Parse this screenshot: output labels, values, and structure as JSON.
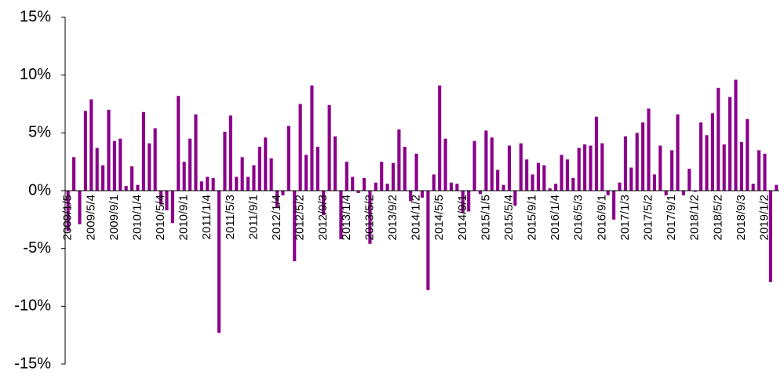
{
  "chart_data": {
    "type": "bar",
    "color": "#8b008b",
    "ylim": [
      -15,
      15
    ],
    "yticks": [
      {
        "value": -15,
        "label": "-15%"
      },
      {
        "value": -10,
        "label": "-10%"
      },
      {
        "value": -5,
        "label": "-5%"
      },
      {
        "value": 0,
        "label": "0%"
      },
      {
        "value": 5,
        "label": "5%"
      },
      {
        "value": 10,
        "label": "10%"
      },
      {
        "value": 15,
        "label": "15%"
      }
    ],
    "categories": [
      "2009/1/5",
      null,
      null,
      null,
      "2009/5/4",
      null,
      null,
      null,
      "2009/9/1",
      null,
      null,
      null,
      "2010/1/4",
      null,
      null,
      null,
      "2010/5/4",
      null,
      null,
      null,
      "2010/9/1",
      null,
      null,
      null,
      "2011/1/4",
      null,
      null,
      null,
      "2011/5/3",
      null,
      null,
      null,
      "2011/9/1",
      null,
      null,
      null,
      "2012/1/4",
      null,
      null,
      null,
      "2012/5/2",
      null,
      null,
      null,
      "2012/9/3",
      null,
      null,
      null,
      "2013/1/4",
      null,
      null,
      null,
      "2013/5/2",
      null,
      null,
      null,
      "2013/9/2",
      null,
      null,
      null,
      "2014/1/2",
      null,
      null,
      null,
      "2014/5/5",
      null,
      null,
      null,
      "2014/9/1",
      null,
      null,
      null,
      "2015/1/5",
      null,
      null,
      null,
      "2015/5/4",
      null,
      null,
      null,
      "2015/9/1",
      null,
      null,
      null,
      "2016/1/4",
      null,
      null,
      null,
      "2016/5/3",
      null,
      null,
      null,
      "2016/9/1",
      null,
      null,
      null,
      "2017/1/3",
      null,
      null,
      null,
      "2017/5/2",
      null,
      null,
      null,
      "2017/9/1",
      null,
      null,
      null,
      "2018/1/2",
      null,
      null,
      null,
      "2018/5/2",
      null,
      null,
      null,
      "2018/9/3",
      null,
      null,
      null,
      "2019/1/2",
      null,
      null
    ],
    "values": [
      -3.5,
      2.9,
      -2.9,
      6.9,
      7.9,
      3.7,
      2.2,
      7.0,
      4.3,
      4.5,
      0.4,
      2.1,
      0.5,
      6.8,
      4.1,
      5.4,
      -1.2,
      -1.7,
      -2.8,
      8.2,
      2.5,
      4.5,
      6.6,
      0.8,
      1.2,
      1.1,
      -12.3,
      5.1,
      6.5,
      1.2,
      2.9,
      1.2,
      2.2,
      3.8,
      4.6,
      2.8,
      -1.5,
      -0.4,
      5.6,
      -6.1,
      7.5,
      3.1,
      9.1,
      3.8,
      -2.1,
      7.4,
      4.7,
      -4.2,
      2.5,
      1.2,
      -0.2,
      1.1,
      -4.6,
      0.7,
      2.5,
      0.6,
      2.4,
      5.3,
      3.8,
      -0.9,
      3.2,
      -0.6,
      -8.6,
      1.4,
      9.1,
      4.5,
      0.7,
      0.6,
      -1.9,
      -1.8,
      4.3,
      -0.3,
      5.2,
      4.6,
      1.8,
      0.5,
      3.9,
      -1.3,
      4.1,
      2.7,
      1.4,
      2.4,
      2.2,
      0.2,
      0.6,
      3.1,
      2.7,
      1.1,
      3.7,
      4.0,
      3.9,
      6.4,
      4.1,
      -0.4,
      -2.5,
      0.7,
      4.7,
      2.0,
      5.0,
      5.9,
      7.1,
      1.4,
      3.9,
      -0.4,
      3.5,
      6.6,
      -0.4,
      1.9,
      -0.1,
      5.9,
      4.8,
      6.7,
      8.9,
      4.0,
      8.1,
      9.6,
      4.2,
      6.2,
      0.6,
      3.5,
      3.2,
      -7.9,
      0.5
    ]
  }
}
